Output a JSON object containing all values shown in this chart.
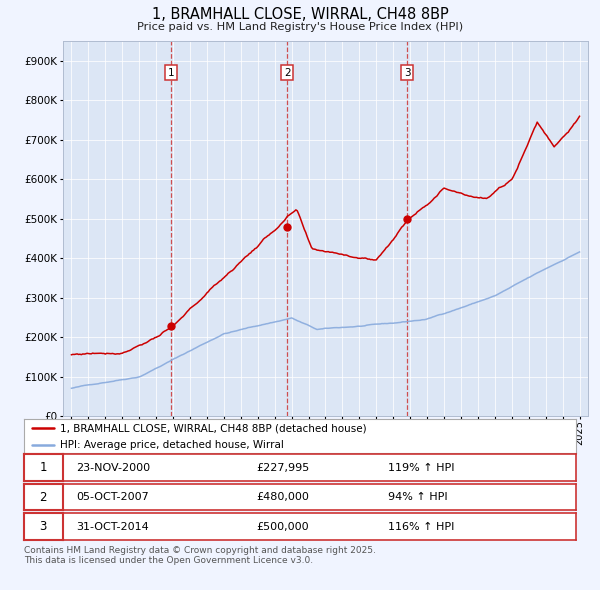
{
  "title": "1, BRAMHALL CLOSE, WIRRAL, CH48 8BP",
  "subtitle": "Price paid vs. HM Land Registry's House Price Index (HPI)",
  "bg_color": "#f0f4ff",
  "plot_bg_color": "#dce6f5",
  "legend_line1": "1, BRAMHALL CLOSE, WIRRAL, CH48 8BP (detached house)",
  "legend_line2": "HPI: Average price, detached house, Wirral",
  "footer": "Contains HM Land Registry data © Crown copyright and database right 2025.\nThis data is licensed under the Open Government Licence v3.0.",
  "sale_color": "#cc0000",
  "hpi_color": "#88aadd",
  "marker_color": "#cc0000",
  "vline_color": "#cc3333",
  "sales": [
    {
      "num": 1,
      "date_x": 2000.9,
      "price": 227995,
      "label": "23-NOV-2000",
      "price_label": "£227,995",
      "hpi_pct": "119%"
    },
    {
      "num": 2,
      "date_x": 2007.75,
      "price": 480000,
      "label": "05-OCT-2007",
      "price_label": "£480,000",
      "hpi_pct": "94%"
    },
    {
      "num": 3,
      "date_x": 2014.83,
      "price": 500000,
      "label": "31-OCT-2014",
      "price_label": "£500,000",
      "hpi_pct": "116%"
    }
  ],
  "ylim": [
    0,
    950000
  ],
  "yticks": [
    0,
    100000,
    200000,
    300000,
    400000,
    500000,
    600000,
    700000,
    800000,
    900000
  ],
  "ytick_labels": [
    "£0",
    "£100K",
    "£200K",
    "£300K",
    "£400K",
    "£500K",
    "£600K",
    "£700K",
    "£800K",
    "£900K"
  ],
  "xlim": [
    1994.5,
    2025.5
  ],
  "xticks": [
    1995,
    1996,
    1997,
    1998,
    1999,
    2000,
    2001,
    2002,
    2003,
    2004,
    2005,
    2006,
    2007,
    2008,
    2009,
    2010,
    2011,
    2012,
    2013,
    2014,
    2015,
    2016,
    2017,
    2018,
    2019,
    2020,
    2021,
    2022,
    2023,
    2024,
    2025
  ]
}
